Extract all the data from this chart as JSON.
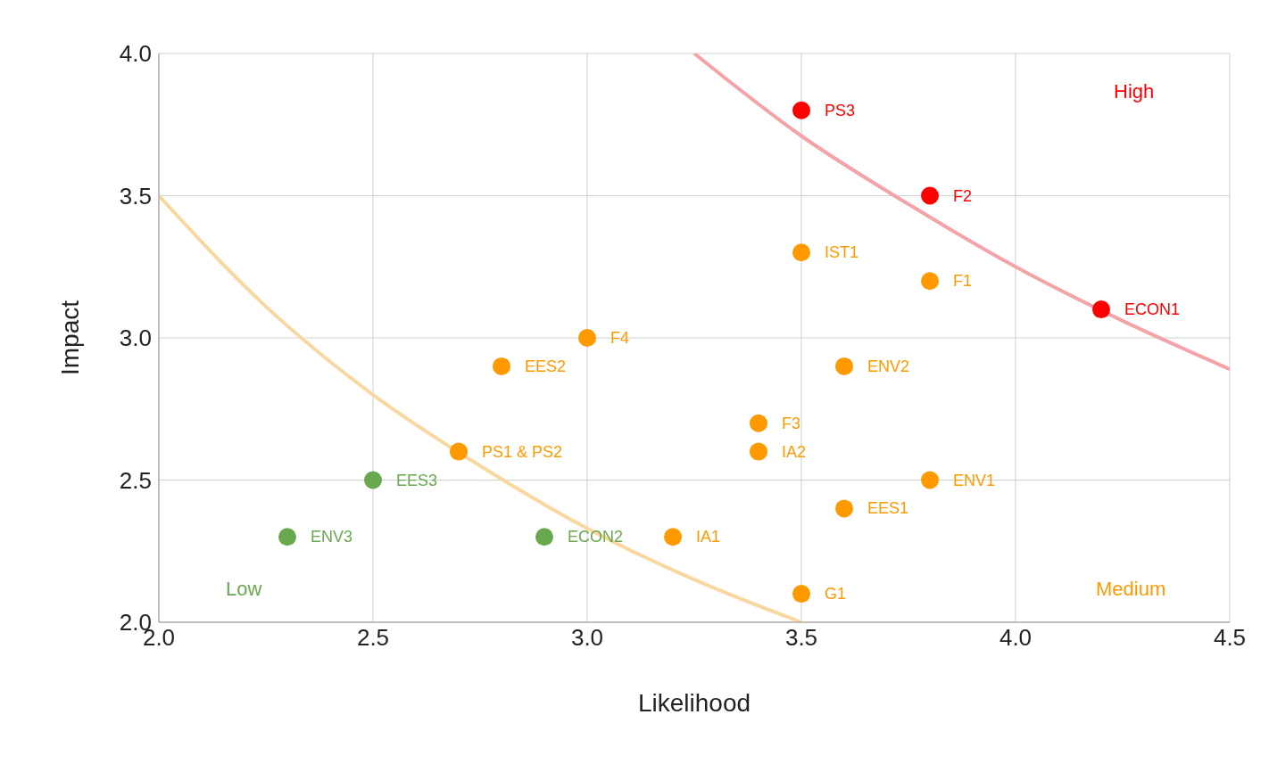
{
  "chart_data": {
    "type": "scatter",
    "xlabel": "Likelihood",
    "ylabel": "Impact",
    "xlim": [
      2.0,
      4.5
    ],
    "ylim": [
      2.0,
      4.0
    ],
    "xticks": [
      {
        "value": 2,
        "label": "2.0"
      },
      2.5,
      {
        "value": 3,
        "label": "3.0"
      },
      3.5,
      {
        "value": 4,
        "label": "4.0"
      },
      4.5
    ],
    "yticks": [
      {
        "value": 2,
        "label": "2.0"
      },
      2.5,
      {
        "value": 3,
        "label": "3.0"
      },
      3.5,
      {
        "value": 4,
        "label": "4.0"
      }
    ],
    "grid": true,
    "marker": "circle",
    "series": [
      {
        "type": "line",
        "marker": "none",
        "color": "#f4a3a8",
        "line_style": "solid",
        "x": [
          3.25,
          3.5,
          3.75,
          4.0,
          4.25,
          4.5
        ],
        "values": [
          4.0,
          3.71,
          3.47,
          3.25,
          3.06,
          2.89
        ]
      },
      {
        "type": "line",
        "marker": "none",
        "color": "#fad7a0",
        "line_style": "solid",
        "x": [
          2.0,
          2.25,
          2.5,
          2.75,
          3.0,
          3.25,
          3.5
        ],
        "values": [
          3.5,
          3.11,
          2.8,
          2.55,
          2.33,
          2.15,
          2.0
        ]
      },
      {
        "color": "#ff0000",
        "x": [
          3.5,
          3.8,
          4.2
        ],
        "values": [
          3.8,
          3.5,
          3.1
        ]
      },
      {
        "color": "#ff9900",
        "x": [
          3.5,
          3.8,
          3.0,
          2.8,
          3.6,
          3.4,
          3.4,
          2.7,
          3.8,
          3.6,
          3.2,
          3.5
        ],
        "values": [
          3.3,
          3.2,
          3.0,
          2.9,
          2.9,
          2.7,
          2.6,
          2.6,
          2.5,
          2.4,
          2.3,
          2.1
        ]
      },
      {
        "color": "#6aa84f",
        "x": [
          2.5,
          2.3,
          2.9
        ],
        "values": [
          2.5,
          2.3,
          2.3
        ]
      }
    ],
    "annotations": [
      "High",
      "Medium",
      "Low",
      {
        "text": "PS3",
        "x": 3.5,
        "y": 3.8
      },
      {
        "text": "F2",
        "x": 3.8,
        "y": 3.5
      },
      {
        "text": "ECON1",
        "x": 4.2,
        "y": 3.1
      },
      {
        "text": "IST1",
        "x": 3.5,
        "y": 3.3
      },
      {
        "text": "F1",
        "x": 3.8,
        "y": 3.2
      },
      {
        "text": "F4",
        "x": 3.0,
        "y": 3.0
      },
      {
        "text": "EES2",
        "x": 2.8,
        "y": 2.9
      },
      {
        "text": "ENV2",
        "x": 3.6,
        "y": 2.9
      },
      {
        "text": "F3",
        "x": 3.4,
        "y": 2.7
      },
      {
        "text": "IA2",
        "x": 3.4,
        "y": 2.6
      },
      {
        "text": "PS1 & PS2",
        "x": 2.7,
        "y": 2.6
      },
      {
        "text": "ENV1",
        "x": 3.8,
        "y": 2.5
      },
      {
        "text": "EES1",
        "x": 3.6,
        "y": 2.4
      },
      {
        "text": "IA1",
        "x": 3.2,
        "y": 2.3
      },
      {
        "text": "G1",
        "x": 3.5,
        "y": 2.1
      },
      {
        "text": "EES3",
        "x": 2.5,
        "y": 2.5
      },
      {
        "text": "ENV3",
        "x": 2.3,
        "y": 2.3
      },
      {
        "text": "ECON2",
        "x": 2.9,
        "y": 2.3
      }
    ]
  }
}
